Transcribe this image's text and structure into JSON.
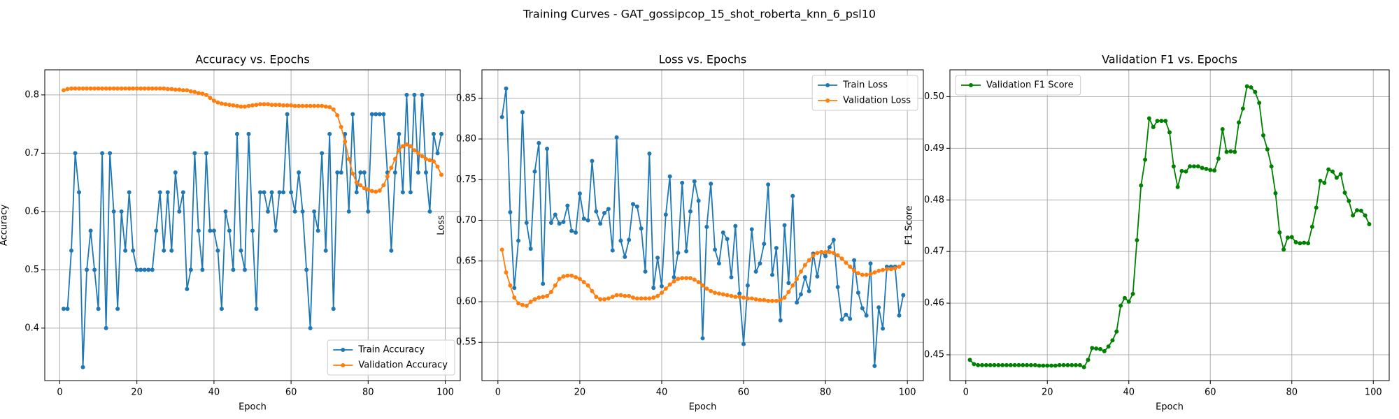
{
  "title": "Training Curves - GAT_gossipcop_15_shot_roberta_knn_6_psl10",
  "chart_data": [
    {
      "type": "line",
      "title": "Accuracy vs. Epochs",
      "xlabel": "Epoch",
      "ylabel": "Accuracy",
      "x": [
        1,
        2,
        3,
        4,
        5,
        6,
        7,
        8,
        9,
        10,
        11,
        12,
        13,
        14,
        15,
        16,
        17,
        18,
        19,
        20,
        21,
        22,
        23,
        24,
        25,
        26,
        27,
        28,
        29,
        30,
        31,
        32,
        33,
        34,
        35,
        36,
        37,
        38,
        39,
        40,
        41,
        42,
        43,
        44,
        45,
        46,
        47,
        48,
        49,
        50,
        51,
        52,
        53,
        54,
        55,
        56,
        57,
        58,
        59,
        60,
        61,
        62,
        63,
        64,
        65,
        66,
        67,
        68,
        69,
        70,
        71,
        72,
        73,
        74,
        75,
        76,
        77,
        78,
        79,
        80,
        81,
        82,
        83,
        84,
        85,
        86,
        87,
        88,
        89,
        90,
        91,
        92,
        93,
        94,
        95,
        96,
        97,
        98,
        99
      ],
      "series": [
        {
          "name": "Train Accuracy",
          "color": "#1f77b4",
          "values": [
            0.433,
            0.433,
            0.533,
            0.7,
            0.633,
            0.333,
            0.5,
            0.567,
            0.5,
            0.433,
            0.7,
            0.4,
            0.7,
            0.6,
            0.433,
            0.6,
            0.533,
            0.633,
            0.533,
            0.5,
            0.5,
            0.5,
            0.5,
            0.5,
            0.567,
            0.633,
            0.533,
            0.633,
            0.533,
            0.667,
            0.6,
            0.633,
            0.467,
            0.5,
            0.7,
            0.567,
            0.5,
            0.7,
            0.567,
            0.567,
            0.533,
            0.433,
            0.6,
            0.567,
            0.5,
            0.733,
            0.533,
            0.5,
            0.733,
            0.567,
            0.433,
            0.633,
            0.633,
            0.6,
            0.633,
            0.567,
            0.633,
            0.633,
            0.767,
            0.633,
            0.6,
            0.667,
            0.6,
            0.5,
            0.4,
            0.6,
            0.567,
            0.7,
            0.533,
            0.733,
            0.433,
            0.667,
            0.667,
            0.733,
            0.6,
            0.767,
            0.633,
            0.667,
            0.667,
            0.6,
            0.767,
            0.767,
            0.767,
            0.767,
            0.667,
            0.533,
            0.667,
            0.733,
            0.633,
            0.8,
            0.633,
            0.8,
            0.667,
            0.8,
            0.667,
            0.6,
            0.733,
            0.7,
            0.733
          ]
        },
        {
          "name": "Validation Accuracy",
          "color": "#ff7f0e",
          "values": [
            0.808,
            0.81,
            0.811,
            0.811,
            0.811,
            0.811,
            0.811,
            0.811,
            0.811,
            0.811,
            0.811,
            0.811,
            0.811,
            0.811,
            0.811,
            0.811,
            0.811,
            0.811,
            0.811,
            0.811,
            0.811,
            0.811,
            0.811,
            0.811,
            0.811,
            0.811,
            0.811,
            0.81,
            0.81,
            0.809,
            0.809,
            0.808,
            0.808,
            0.806,
            0.805,
            0.803,
            0.802,
            0.8,
            0.795,
            0.79,
            0.787,
            0.785,
            0.784,
            0.783,
            0.782,
            0.781,
            0.78,
            0.78,
            0.781,
            0.782,
            0.783,
            0.784,
            0.784,
            0.784,
            0.783,
            0.783,
            0.783,
            0.782,
            0.782,
            0.782,
            0.781,
            0.781,
            0.781,
            0.781,
            0.781,
            0.781,
            0.781,
            0.781,
            0.78,
            0.779,
            0.775,
            0.765,
            0.745,
            0.72,
            0.69,
            0.665,
            0.65,
            0.645,
            0.64,
            0.638,
            0.635,
            0.634,
            0.636,
            0.645,
            0.66,
            0.675,
            0.69,
            0.705,
            0.712,
            0.715,
            0.712,
            0.705,
            0.7,
            0.695,
            0.69,
            0.688,
            0.686,
            0.677,
            0.663
          ]
        }
      ],
      "xlim": [
        -3.9,
        103.9
      ],
      "ylim": [
        0.31,
        0.843
      ],
      "xticks": [
        0,
        20,
        40,
        60,
        80,
        100
      ],
      "yticks": [
        0.4,
        0.5,
        0.6,
        0.7,
        0.8
      ],
      "grid": true,
      "legend": "lower right"
    },
    {
      "type": "line",
      "title": "Loss vs. Epochs",
      "xlabel": "Epoch",
      "ylabel": "Loss",
      "x": [
        1,
        2,
        3,
        4,
        5,
        6,
        7,
        8,
        9,
        10,
        11,
        12,
        13,
        14,
        15,
        16,
        17,
        18,
        19,
        20,
        21,
        22,
        23,
        24,
        25,
        26,
        27,
        28,
        29,
        30,
        31,
        32,
        33,
        34,
        35,
        36,
        37,
        38,
        39,
        40,
        41,
        42,
        43,
        44,
        45,
        46,
        47,
        48,
        49,
        50,
        51,
        52,
        53,
        54,
        55,
        56,
        57,
        58,
        59,
        60,
        61,
        62,
        63,
        64,
        65,
        66,
        67,
        68,
        69,
        70,
        71,
        72,
        73,
        74,
        75,
        76,
        77,
        78,
        79,
        80,
        81,
        82,
        83,
        84,
        85,
        86,
        87,
        88,
        89,
        90,
        91,
        92,
        93,
        94,
        95,
        96,
        97,
        98,
        99
      ],
      "series": [
        {
          "name": "Train Loss",
          "color": "#1f77b4",
          "values": [
            0.827,
            0.862,
            0.71,
            0.617,
            0.675,
            0.833,
            0.697,
            0.665,
            0.76,
            0.795,
            0.622,
            0.788,
            0.697,
            0.707,
            0.696,
            0.698,
            0.718,
            0.687,
            0.685,
            0.733,
            0.702,
            0.7,
            0.773,
            0.711,
            0.696,
            0.709,
            0.714,
            0.663,
            0.802,
            0.675,
            0.655,
            0.676,
            0.72,
            0.717,
            0.69,
            0.637,
            0.782,
            0.617,
            0.654,
            0.619,
            0.707,
            0.754,
            0.63,
            0.66,
            0.746,
            0.662,
            0.711,
            0.748,
            0.724,
            0.555,
            0.692,
            0.745,
            0.664,
            0.647,
            0.685,
            0.677,
            0.63,
            0.693,
            0.61,
            0.548,
            0.62,
            0.689,
            0.637,
            0.647,
            0.671,
            0.744,
            0.633,
            0.666,
            0.577,
            0.694,
            0.623,
            0.73,
            0.599,
            0.609,
            0.63,
            0.613,
            0.659,
            0.631,
            0.661,
            0.656,
            0.667,
            0.676,
            0.618,
            0.578,
            0.584,
            0.579,
            0.651,
            0.611,
            0.592,
            0.583,
            0.647,
            0.521,
            0.593,
            0.567,
            0.643,
            0.643,
            0.643,
            0.583,
            0.608
          ]
        },
        {
          "name": "Validation Loss",
          "color": "#ff7f0e",
          "values": [
            0.664,
            0.636,
            0.62,
            0.605,
            0.598,
            0.596,
            0.595,
            0.6,
            0.603,
            0.605,
            0.606,
            0.607,
            0.612,
            0.62,
            0.628,
            0.631,
            0.632,
            0.632,
            0.63,
            0.628,
            0.624,
            0.62,
            0.613,
            0.606,
            0.603,
            0.603,
            0.604,
            0.606,
            0.608,
            0.608,
            0.607,
            0.607,
            0.605,
            0.604,
            0.604,
            0.604,
            0.604,
            0.605,
            0.607,
            0.611,
            0.616,
            0.621,
            0.625,
            0.628,
            0.629,
            0.629,
            0.629,
            0.627,
            0.624,
            0.62,
            0.616,
            0.613,
            0.611,
            0.61,
            0.609,
            0.608,
            0.607,
            0.606,
            0.606,
            0.605,
            0.604,
            0.604,
            0.603,
            0.602,
            0.602,
            0.601,
            0.601,
            0.601,
            0.602,
            0.605,
            0.612,
            0.62,
            0.628,
            0.637,
            0.645,
            0.651,
            0.657,
            0.66,
            0.661,
            0.661,
            0.661,
            0.66,
            0.657,
            0.653,
            0.648,
            0.643,
            0.638,
            0.635,
            0.633,
            0.633,
            0.634,
            0.636,
            0.638,
            0.639,
            0.64,
            0.64,
            0.641,
            0.643,
            0.647
          ]
        }
      ],
      "xlim": [
        -3.9,
        103.9
      ],
      "ylim": [
        0.503,
        0.885
      ],
      "xticks": [
        0,
        20,
        40,
        60,
        80,
        100
      ],
      "yticks": [
        0.55,
        {
          "value": 0.6,
          "label": "0.60"
        },
        0.65,
        {
          "value": 0.7,
          "label": "0.70"
        },
        0.75,
        {
          "value": 0.8,
          "label": "0.80"
        },
        0.85
      ],
      "grid": true,
      "legend": "upper right"
    },
    {
      "type": "line",
      "title": "Validation F1 vs. Epochs",
      "xlabel": "Epoch",
      "ylabel": "F1 Score",
      "x": [
        1,
        2,
        3,
        4,
        5,
        6,
        7,
        8,
        9,
        10,
        11,
        12,
        13,
        14,
        15,
        16,
        17,
        18,
        19,
        20,
        21,
        22,
        23,
        24,
        25,
        26,
        27,
        28,
        29,
        30,
        31,
        32,
        33,
        34,
        35,
        36,
        37,
        38,
        39,
        40,
        41,
        42,
        43,
        44,
        45,
        46,
        47,
        48,
        49,
        50,
        51,
        52,
        53,
        54,
        55,
        56,
        57,
        58,
        59,
        60,
        61,
        62,
        63,
        64,
        65,
        66,
        67,
        68,
        69,
        70,
        71,
        72,
        73,
        74,
        75,
        76,
        77,
        78,
        79,
        80,
        81,
        82,
        83,
        84,
        85,
        86,
        87,
        88,
        89,
        90,
        91,
        92,
        93,
        94,
        95,
        96,
        97,
        98,
        99
      ],
      "series": [
        {
          "name": "Validation F1 Score",
          "color": "#008000",
          "values": [
            0.449,
            0.4482,
            0.448,
            0.448,
            0.448,
            0.448,
            0.448,
            0.448,
            0.448,
            0.448,
            0.448,
            0.448,
            0.448,
            0.448,
            0.448,
            0.448,
            0.448,
            0.4479,
            0.4479,
            0.4479,
            0.4479,
            0.4479,
            0.448,
            0.448,
            0.448,
            0.448,
            0.448,
            0.448,
            0.4476,
            0.449,
            0.4513,
            0.4512,
            0.4511,
            0.4507,
            0.4516,
            0.4528,
            0.4545,
            0.4595,
            0.461,
            0.4603,
            0.4618,
            0.4722,
            0.4828,
            0.4878,
            0.4958,
            0.4941,
            0.4953,
            0.4953,
            0.4953,
            0.4931,
            0.4865,
            0.4825,
            0.4856,
            0.4855,
            0.4865,
            0.4865,
            0.4865,
            0.4862,
            0.486,
            0.4858,
            0.4857,
            0.488,
            0.4937,
            0.4893,
            0.4894,
            0.4893,
            0.495,
            0.4977,
            0.502,
            0.5018,
            0.5009,
            0.4988,
            0.4925,
            0.4898,
            0.4865,
            0.4813,
            0.4737,
            0.4704,
            0.4727,
            0.4728,
            0.4718,
            0.4716,
            0.4717,
            0.4716,
            0.4748,
            0.4785,
            0.4837,
            0.4833,
            0.4859,
            0.4855,
            0.4843,
            0.485,
            0.4814,
            0.4798,
            0.477,
            0.478,
            0.4779,
            0.477,
            0.4753
          ]
        }
      ],
      "xlim": [
        -3.9,
        103.9
      ],
      "ylim": [
        0.445,
        0.5052
      ],
      "xticks": [
        0,
        20,
        40,
        60,
        80,
        100
      ],
      "yticks": [
        0.45,
        0.46,
        0.47,
        0.48,
        0.49,
        {
          "value": 0.5,
          "label": "0.50"
        }
      ],
      "grid": true,
      "legend": "upper left"
    }
  ]
}
